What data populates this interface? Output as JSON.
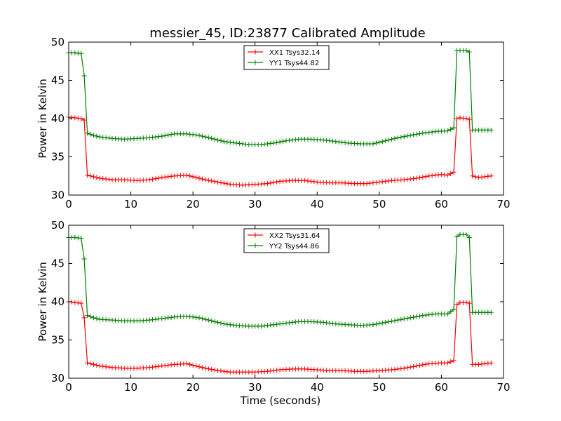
{
  "title": "messier_45, ID:23877 Calibrated Amplitude",
  "chart_data": [
    {
      "type": "line",
      "ylabel": "Power in Kelvin",
      "xlabel": "",
      "xlim": [
        0,
        70
      ],
      "ylim": [
        30,
        50
      ],
      "xticks": [
        0,
        10,
        20,
        30,
        40,
        50,
        60,
        70
      ],
      "yticks": [
        30,
        35,
        40,
        45,
        50
      ],
      "legend_placement": "top-center",
      "series": [
        {
          "name": "XX1 Tsys32.14",
          "color": "#ff0000",
          "marker": "+",
          "points": [
            [
              0,
              40.2
            ],
            [
              1,
              40.1
            ],
            [
              2,
              40.0
            ],
            [
              2.5,
              39.8
            ],
            [
              3,
              32.6
            ],
            [
              4,
              32.4
            ],
            [
              5,
              32.2
            ],
            [
              7,
              32.0
            ],
            [
              9,
              32.0
            ],
            [
              11,
              31.9
            ],
            [
              13,
              32.0
            ],
            [
              15,
              32.3
            ],
            [
              17,
              32.5
            ],
            [
              19,
              32.6
            ],
            [
              20,
              32.4
            ],
            [
              22,
              32.0
            ],
            [
              24,
              31.7
            ],
            [
              26,
              31.4
            ],
            [
              28,
              31.3
            ],
            [
              30,
              31.4
            ],
            [
              32,
              31.5
            ],
            [
              34,
              31.8
            ],
            [
              36,
              31.9
            ],
            [
              38,
              31.9
            ],
            [
              40,
              31.7
            ],
            [
              42,
              31.6
            ],
            [
              44,
              31.6
            ],
            [
              46,
              31.5
            ],
            [
              48,
              31.5
            ],
            [
              50,
              31.7
            ],
            [
              52,
              31.9
            ],
            [
              54,
              32.0
            ],
            [
              56,
              32.2
            ],
            [
              58,
              32.5
            ],
            [
              60,
              32.7
            ],
            [
              61,
              32.6
            ],
            [
              62,
              33.0
            ],
            [
              62.5,
              40.0
            ],
            [
              63,
              40.1
            ],
            [
              64,
              40.0
            ],
            [
              64.5,
              39.9
            ],
            [
              65,
              32.5
            ],
            [
              66,
              32.3
            ],
            [
              67,
              32.4
            ],
            [
              68,
              32.5
            ]
          ]
        },
        {
          "name": "YY1 Tsys44.82",
          "color": "#008000",
          "marker": "+",
          "points": [
            [
              0,
              48.6
            ],
            [
              1,
              48.6
            ],
            [
              2,
              48.5
            ],
            [
              2.5,
              45.6
            ],
            [
              3,
              38.1
            ],
            [
              4,
              37.8
            ],
            [
              5,
              37.6
            ],
            [
              7,
              37.4
            ],
            [
              9,
              37.3
            ],
            [
              11,
              37.4
            ],
            [
              13,
              37.5
            ],
            [
              15,
              37.7
            ],
            [
              17,
              38.0
            ],
            [
              19,
              38.0
            ],
            [
              21,
              37.8
            ],
            [
              23,
              37.4
            ],
            [
              25,
              37.0
            ],
            [
              27,
              36.8
            ],
            [
              29,
              36.6
            ],
            [
              31,
              36.6
            ],
            [
              33,
              36.8
            ],
            [
              35,
              37.1
            ],
            [
              37,
              37.3
            ],
            [
              39,
              37.3
            ],
            [
              41,
              37.2
            ],
            [
              43,
              37.0
            ],
            [
              45,
              36.8
            ],
            [
              47,
              36.7
            ],
            [
              49,
              36.7
            ],
            [
              51,
              37.1
            ],
            [
              53,
              37.5
            ],
            [
              55,
              37.8
            ],
            [
              57,
              38.1
            ],
            [
              59,
              38.3
            ],
            [
              61,
              38.4
            ],
            [
              62,
              38.8
            ],
            [
              62.5,
              48.9
            ],
            [
              63,
              48.9
            ],
            [
              64,
              48.9
            ],
            [
              64.5,
              48.7
            ],
            [
              65,
              38.5
            ],
            [
              66,
              38.5
            ],
            [
              67,
              38.5
            ],
            [
              68,
              38.5
            ]
          ]
        }
      ]
    },
    {
      "type": "line",
      "ylabel": "Power in Kelvin",
      "xlabel": "Time (seconds)",
      "xlim": [
        0,
        70
      ],
      "ylim": [
        30,
        50
      ],
      "xticks": [
        0,
        10,
        20,
        30,
        40,
        50,
        60,
        70
      ],
      "yticks": [
        30,
        35,
        40,
        45,
        50
      ],
      "legend_placement": "top-center",
      "series": [
        {
          "name": "XX2 Tsys31.64",
          "color": "#ff0000",
          "marker": "+",
          "points": [
            [
              0,
              40.0
            ],
            [
              1,
              39.9
            ],
            [
              2,
              39.8
            ],
            [
              2.5,
              37.9
            ],
            [
              3,
              32.0
            ],
            [
              4,
              31.8
            ],
            [
              5,
              31.6
            ],
            [
              7,
              31.4
            ],
            [
              9,
              31.3
            ],
            [
              11,
              31.3
            ],
            [
              13,
              31.4
            ],
            [
              15,
              31.6
            ],
            [
              17,
              31.8
            ],
            [
              19,
              31.9
            ],
            [
              20,
              31.7
            ],
            [
              22,
              31.3
            ],
            [
              24,
              31.0
            ],
            [
              26,
              30.8
            ],
            [
              28,
              30.8
            ],
            [
              30,
              30.8
            ],
            [
              32,
              30.9
            ],
            [
              34,
              31.1
            ],
            [
              36,
              31.2
            ],
            [
              38,
              31.2
            ],
            [
              40,
              31.1
            ],
            [
              42,
              31.0
            ],
            [
              44,
              31.0
            ],
            [
              46,
              30.9
            ],
            [
              48,
              30.9
            ],
            [
              50,
              31.0
            ],
            [
              52,
              31.1
            ],
            [
              54,
              31.3
            ],
            [
              56,
              31.6
            ],
            [
              58,
              31.9
            ],
            [
              60,
              32.0
            ],
            [
              61,
              32.0
            ],
            [
              62,
              32.3
            ],
            [
              62.5,
              39.6
            ],
            [
              63,
              39.9
            ],
            [
              64,
              39.9
            ],
            [
              64.5,
              39.8
            ],
            [
              65,
              31.8
            ],
            [
              66,
              31.8
            ],
            [
              67,
              31.9
            ],
            [
              68,
              32.0
            ]
          ]
        },
        {
          "name": "YY2 Tsys44.86",
          "color": "#008000",
          "marker": "+",
          "points": [
            [
              0,
              48.4
            ],
            [
              1,
              48.4
            ],
            [
              2,
              48.3
            ],
            [
              2.5,
              45.6
            ],
            [
              3,
              38.2
            ],
            [
              4,
              37.9
            ],
            [
              5,
              37.7
            ],
            [
              7,
              37.6
            ],
            [
              9,
              37.5
            ],
            [
              11,
              37.5
            ],
            [
              13,
              37.6
            ],
            [
              15,
              37.8
            ],
            [
              17,
              38.0
            ],
            [
              19,
              38.1
            ],
            [
              21,
              37.9
            ],
            [
              23,
              37.5
            ],
            [
              25,
              37.1
            ],
            [
              27,
              36.9
            ],
            [
              29,
              36.8
            ],
            [
              31,
              36.8
            ],
            [
              33,
              37.0
            ],
            [
              35,
              37.2
            ],
            [
              37,
              37.4
            ],
            [
              39,
              37.4
            ],
            [
              41,
              37.3
            ],
            [
              43,
              37.1
            ],
            [
              45,
              37.0
            ],
            [
              47,
              36.9
            ],
            [
              49,
              37.0
            ],
            [
              51,
              37.3
            ],
            [
              53,
              37.6
            ],
            [
              55,
              37.9
            ],
            [
              57,
              38.2
            ],
            [
              59,
              38.4
            ],
            [
              61,
              38.4
            ],
            [
              62,
              39.0
            ],
            [
              62.5,
              48.5
            ],
            [
              63,
              48.8
            ],
            [
              64,
              48.8
            ],
            [
              64.5,
              48.4
            ],
            [
              65,
              38.6
            ],
            [
              66,
              38.6
            ],
            [
              67,
              38.6
            ],
            [
              68,
              38.6
            ]
          ]
        }
      ]
    }
  ]
}
